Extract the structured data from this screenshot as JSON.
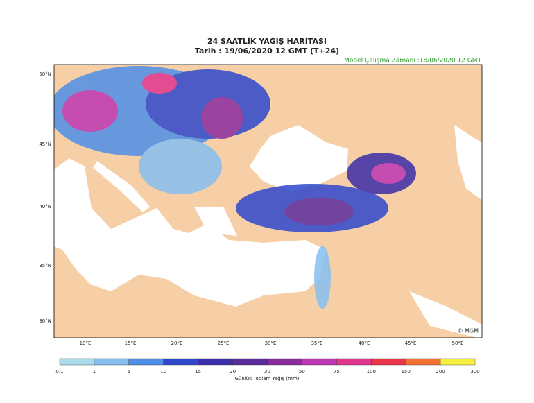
{
  "header": {
    "title": "24 SAATLİK YAĞIŞ HARİTASI",
    "subtitle": "Tarih : 19/06/2020  12 GMT (T+24)",
    "model_time": "Model Çalışma Zamanı :18/06/2020  12 GMT"
  },
  "map": {
    "lat_labels": [
      "50°N",
      "45°N",
      "40°N",
      "35°N",
      "30°N"
    ],
    "lon_labels": [
      "10°E",
      "15°E",
      "20°E",
      "25°E",
      "30°E",
      "35°E",
      "40°E",
      "45°E",
      "50°E"
    ],
    "credit": "© MGM"
  },
  "legend": {
    "ticks": [
      0.1,
      1,
      5,
      10,
      15,
      20,
      30,
      50,
      75,
      100,
      150,
      200,
      300
    ],
    "colors": [
      "#a9dbea",
      "#86bff0",
      "#4f8ee6",
      "#2f47cc",
      "#3b2ea8",
      "#5b2c9c",
      "#8a2c9e",
      "#bd36b4",
      "#e0368e",
      "#ea3448",
      "#f27232",
      "#f8f040"
    ],
    "label": "Günlük Toplam Yağış (mm)"
  }
}
